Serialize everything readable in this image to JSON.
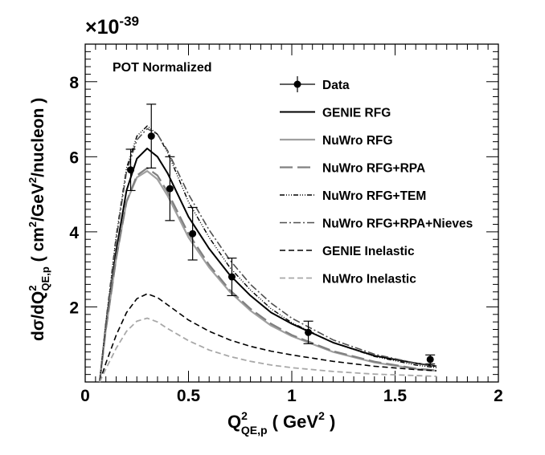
{
  "chart_data": {
    "type": "line",
    "annotation": "POT Normalized",
    "exponent_prefix": "×10",
    "exponent_value": "-39",
    "xlabel": {
      "base": "Q",
      "sup": "2",
      "sub": "QE,p",
      "unit_open": "( GeV",
      "unit_sup": "2",
      "unit_close": " )"
    },
    "ylabel": {
      "p1": "dσ/dQ",
      "sup1": "2",
      "sub1": "QE,p",
      "p2": " ( cm",
      "sup2": "2",
      "p3": "/GeV",
      "sup3": "2",
      "p4": "/nucleon )"
    },
    "xlim": [
      0,
      2
    ],
    "ylim": [
      0,
      9
    ],
    "x_ticks": [
      "0",
      "0.5",
      "1",
      "1.5",
      "2"
    ],
    "y_ticks": [
      "2",
      "4",
      "6",
      "8"
    ],
    "legend_position": "top-right",
    "data_series": {
      "name": "Data",
      "points": [
        {
          "x": 0.22,
          "y": 5.65,
          "err": 0.55
        },
        {
          "x": 0.32,
          "y": 6.55,
          "err": 0.85
        },
        {
          "x": 0.41,
          "y": 5.15,
          "err": 0.85
        },
        {
          "x": 0.52,
          "y": 3.95,
          "err": 0.7
        },
        {
          "x": 0.71,
          "y": 2.8,
          "err": 0.5
        },
        {
          "x": 1.08,
          "y": 1.32,
          "err": 0.3
        },
        {
          "x": 1.67,
          "y": 0.6,
          "err": 0.12
        }
      ]
    },
    "series": [
      {
        "name": "GENIE RFG",
        "color": "#000000",
        "dash": "",
        "width": 2,
        "x": [
          0.07,
          0.1,
          0.15,
          0.2,
          0.25,
          0.3,
          0.35,
          0.4,
          0.5,
          0.6,
          0.7,
          0.8,
          0.9,
          1.0,
          1.2,
          1.4,
          1.6,
          1.7
        ],
        "y": [
          0,
          1.5,
          3.5,
          5.1,
          5.95,
          6.22,
          6.0,
          5.55,
          4.4,
          3.55,
          2.85,
          2.3,
          1.85,
          1.55,
          1.05,
          0.7,
          0.5,
          0.42
        ]
      },
      {
        "name": "NuWro RFG",
        "color": "#a0a0a0",
        "dash": "",
        "width": 2.2,
        "x": [
          0.07,
          0.1,
          0.15,
          0.2,
          0.25,
          0.3,
          0.35,
          0.4,
          0.5,
          0.6,
          0.7,
          0.8,
          0.9,
          1.0,
          1.2,
          1.4,
          1.6,
          1.7
        ],
        "y": [
          0,
          1.4,
          3.3,
          4.8,
          5.45,
          5.62,
          5.4,
          4.95,
          3.85,
          3.05,
          2.4,
          1.9,
          1.5,
          1.22,
          0.8,
          0.52,
          0.35,
          0.3
        ]
      },
      {
        "name": "NuWro RFG+RPA",
        "color": "#808080",
        "dash": "16 6",
        "width": 2.2,
        "x": [
          0.07,
          0.1,
          0.15,
          0.2,
          0.25,
          0.3,
          0.35,
          0.4,
          0.5,
          0.6,
          0.7,
          0.8,
          0.9,
          1.0,
          1.2,
          1.4,
          1.6,
          1.7
        ],
        "y": [
          0,
          1.4,
          3.3,
          4.8,
          5.5,
          5.7,
          5.5,
          5.05,
          3.95,
          3.12,
          2.45,
          1.95,
          1.55,
          1.25,
          0.82,
          0.54,
          0.36,
          0.31
        ]
      },
      {
        "name": "NuWro RFG+TEM",
        "color": "#000000",
        "dash": "6 2 1 2 1 2 1 2",
        "width": 1.4,
        "x": [
          0.07,
          0.1,
          0.15,
          0.2,
          0.25,
          0.3,
          0.35,
          0.4,
          0.5,
          0.6,
          0.7,
          0.8,
          0.9,
          1.0,
          1.2,
          1.4,
          1.6,
          1.7
        ],
        "y": [
          0,
          1.6,
          3.9,
          5.7,
          6.55,
          6.82,
          6.6,
          6.1,
          4.8,
          3.85,
          3.05,
          2.45,
          1.95,
          1.58,
          1.05,
          0.68,
          0.45,
          0.38
        ]
      },
      {
        "name": "NuWro RFG+RPA+Nieves",
        "color": "#505050",
        "dash": "9 3 2 3",
        "width": 1.6,
        "x": [
          0.07,
          0.1,
          0.15,
          0.2,
          0.25,
          0.3,
          0.35,
          0.4,
          0.5,
          0.6,
          0.7,
          0.8,
          0.9,
          1.0,
          1.2,
          1.4,
          1.6,
          1.7
        ],
        "y": [
          0,
          1.55,
          3.8,
          5.6,
          6.45,
          6.75,
          6.6,
          6.15,
          5.0,
          4.05,
          3.25,
          2.6,
          2.1,
          1.7,
          1.12,
          0.74,
          0.5,
          0.43
        ]
      },
      {
        "name": "GENIE Inelastic",
        "color": "#000000",
        "dash": "7 4",
        "width": 1.6,
        "x": [
          0.07,
          0.1,
          0.15,
          0.2,
          0.25,
          0.3,
          0.35,
          0.4,
          0.5,
          0.6,
          0.7,
          0.8,
          0.9,
          1.0,
          1.2,
          1.4,
          1.6,
          1.7
        ],
        "y": [
          0,
          0.5,
          1.25,
          1.85,
          2.22,
          2.35,
          2.25,
          2.05,
          1.65,
          1.35,
          1.12,
          0.95,
          0.82,
          0.72,
          0.55,
          0.42,
          0.33,
          0.3
        ]
      },
      {
        "name": "NuWro Inelastic",
        "color": "#a8a8a8",
        "dash": "7 4",
        "width": 1.8,
        "x": [
          0.07,
          0.1,
          0.15,
          0.2,
          0.25,
          0.3,
          0.35,
          0.4,
          0.5,
          0.6,
          0.7,
          0.8,
          0.9,
          1.0,
          1.2,
          1.4,
          1.6,
          1.7
        ],
        "y": [
          0,
          0.35,
          0.9,
          1.35,
          1.62,
          1.7,
          1.6,
          1.42,
          1.1,
          0.85,
          0.68,
          0.55,
          0.45,
          0.38,
          0.28,
          0.21,
          0.17,
          0.15
        ]
      }
    ]
  }
}
